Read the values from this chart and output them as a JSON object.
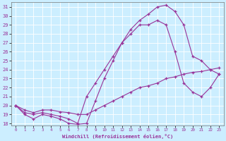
{
  "xlabel": "Windchill (Refroidissement éolien,°C)",
  "bg_color": "#cceeff",
  "line_color": "#993399",
  "grid_color": "#ffffff",
  "xlim": [
    -0.5,
    23.5
  ],
  "ylim": [
    17.8,
    31.5
  ],
  "yticks": [
    18,
    19,
    20,
    21,
    22,
    23,
    24,
    25,
    26,
    27,
    28,
    29,
    30,
    31
  ],
  "xticks": [
    0,
    1,
    2,
    3,
    4,
    5,
    6,
    7,
    8,
    9,
    10,
    11,
    12,
    13,
    14,
    15,
    16,
    17,
    18,
    19,
    20,
    21,
    22,
    23
  ],
  "lines": [
    {
      "x": [
        0,
        1,
        2,
        3,
        4,
        5,
        6,
        7,
        8,
        9,
        10,
        11,
        12,
        13,
        14,
        15,
        16,
        17,
        18,
        19,
        20,
        21,
        22,
        23
      ],
      "y": [
        20.0,
        19.0,
        18.5,
        19.0,
        18.8,
        18.5,
        18.0,
        17.9,
        18.0,
        20.5,
        23.0,
        25.0,
        27.0,
        28.5,
        29.5,
        30.2,
        31.0,
        31.2,
        30.5,
        29.0,
        25.5,
        25.0,
        24.0,
        23.5
      ]
    },
    {
      "x": [
        0,
        1,
        2,
        3,
        4,
        5,
        6,
        7,
        8,
        9,
        10,
        11,
        12,
        13,
        14,
        15,
        16,
        17,
        18,
        19,
        20,
        21,
        22,
        23
      ],
      "y": [
        20.0,
        19.2,
        19.0,
        19.2,
        19.0,
        18.8,
        18.5,
        18.0,
        21.0,
        22.5,
        24.0,
        25.5,
        27.0,
        28.0,
        29.0,
        29.0,
        29.5,
        29.0,
        26.0,
        22.5,
        21.5,
        21.0,
        22.0,
        23.5
      ]
    },
    {
      "x": [
        0,
        1,
        2,
        3,
        4,
        5,
        6,
        7,
        8,
        9,
        10,
        11,
        12,
        13,
        14,
        15,
        16,
        17,
        18,
        19,
        20,
        21,
        22,
        23
      ],
      "y": [
        20.0,
        19.5,
        19.2,
        19.5,
        19.5,
        19.3,
        19.2,
        19.0,
        19.0,
        19.5,
        20.0,
        20.5,
        21.0,
        21.5,
        22.0,
        22.2,
        22.5,
        23.0,
        23.2,
        23.5,
        23.7,
        23.8,
        24.0,
        24.2
      ]
    }
  ]
}
